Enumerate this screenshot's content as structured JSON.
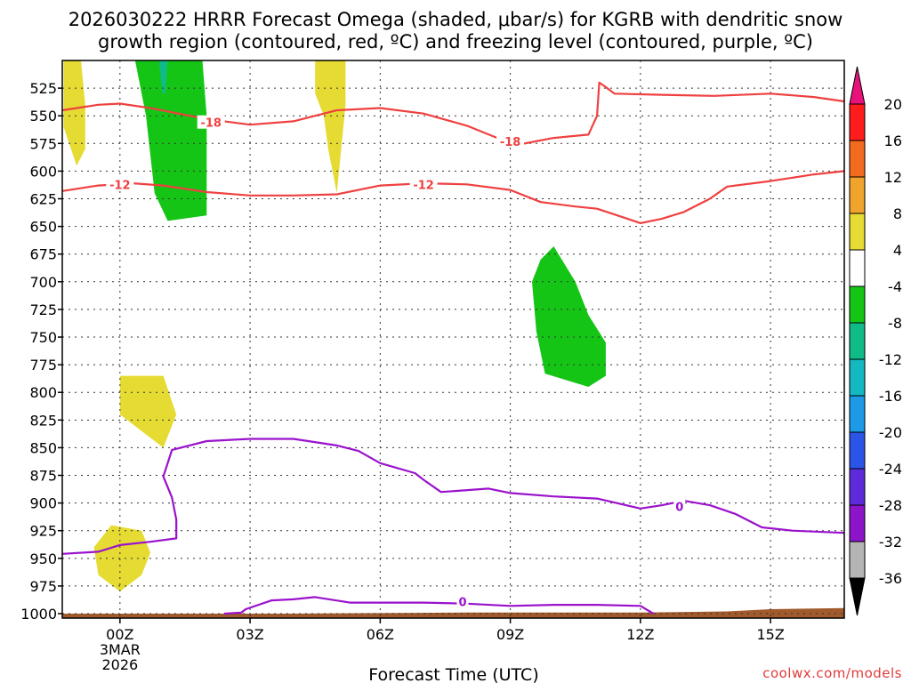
{
  "chart_data": {
    "type": "contour",
    "title_line1": "2026030222 HRRR Forecast Omega (shaded, μbar/s) for KGRB with dendritic snow",
    "title_line2": "growth region (contoured, red, ºC) and freezing level (contoured, purple, ºC)",
    "xlabel": "Forecast Time (UTC)",
    "credit": "coolwx.com/models",
    "xlim": [
      -1.33,
      16.7
    ],
    "ylim": [
      1004,
      500
    ],
    "x_ticks": [
      {
        "x": 0,
        "label": "00Z",
        "sub1": "3MAR",
        "sub2": "2026"
      },
      {
        "x": 3,
        "label": "03Z"
      },
      {
        "x": 6,
        "label": "06Z"
      },
      {
        "x": 9,
        "label": "09Z"
      },
      {
        "x": 12,
        "label": "12Z"
      },
      {
        "x": 15,
        "label": "15Z"
      }
    ],
    "y_ticks": [
      525,
      550,
      575,
      600,
      625,
      650,
      675,
      700,
      725,
      750,
      775,
      800,
      825,
      850,
      875,
      900,
      925,
      950,
      975,
      1000
    ],
    "colorbar": {
      "levels": [
        "20",
        "16",
        "12",
        "8",
        "4",
        "-4",
        "-8",
        "-12",
        "-16",
        "-20",
        "-24",
        "-28",
        "-32",
        "-36"
      ],
      "colors": [
        "#ff1c1c",
        "#f26b1f",
        "#f0a32d",
        "#e5db32",
        "#ffffff",
        "#15c515",
        "#0fbc88",
        "#13b8c0",
        "#1c9ae6",
        "#2b55e6",
        "#5d2bd9",
        "#8d14c8",
        "#b4b4b4"
      ],
      "top_color": "#e8127a",
      "bottom_color": "#000000"
    },
    "contours": {
      "dgz_top": {
        "label": "-18",
        "color": "#ef4040",
        "label_at": [
          [
            2.1,
            556
          ],
          [
            9.0,
            573
          ]
        ],
        "points": [
          [
            -1.33,
            545
          ],
          [
            -0.5,
            540
          ],
          [
            0,
            539
          ],
          [
            0.7,
            543
          ],
          [
            2,
            553
          ],
          [
            3,
            558
          ],
          [
            4,
            555
          ],
          [
            5,
            545
          ],
          [
            6,
            543
          ],
          [
            7,
            548
          ],
          [
            8,
            559
          ],
          [
            8.7,
            570
          ],
          [
            9.2,
            576
          ],
          [
            10,
            570
          ],
          [
            10.8,
            567
          ],
          [
            11.0,
            550
          ],
          [
            11.05,
            520
          ],
          [
            11.2,
            524
          ],
          [
            11.4,
            530
          ],
          [
            12.5,
            531
          ],
          [
            13.7,
            532
          ],
          [
            15,
            530
          ],
          [
            16,
            533
          ],
          [
            16.7,
            537
          ]
        ]
      },
      "dgz_bottom": {
        "label": "-12",
        "color": "#ef4040",
        "label_at": [
          [
            0.0,
            612
          ],
          [
            7.0,
            612
          ]
        ],
        "points": [
          [
            -1.33,
            618
          ],
          [
            -0.5,
            613
          ],
          [
            0.3,
            611
          ],
          [
            1,
            613
          ],
          [
            2,
            619
          ],
          [
            3,
            622
          ],
          [
            4,
            622
          ],
          [
            5,
            621
          ],
          [
            6,
            613
          ],
          [
            7,
            611
          ],
          [
            8,
            612
          ],
          [
            9,
            617
          ],
          [
            9.7,
            628
          ],
          [
            10.5,
            632
          ],
          [
            11,
            634
          ],
          [
            11.7,
            643
          ],
          [
            12,
            647
          ],
          [
            12.5,
            643
          ],
          [
            13.0,
            637
          ],
          [
            13.6,
            625
          ],
          [
            14,
            614
          ],
          [
            15,
            609
          ],
          [
            16,
            603
          ],
          [
            16.7,
            600
          ]
        ]
      },
      "freezing_upper": {
        "label": "0",
        "color": "#9a12cc",
        "label_at": [
          [
            12.9,
            903
          ]
        ],
        "points": [
          [
            -1.33,
            946
          ],
          [
            -0.5,
            944
          ],
          [
            0,
            938
          ],
          [
            0.7,
            935
          ],
          [
            1.3,
            932
          ],
          [
            1.3,
            915
          ],
          [
            1.2,
            895
          ],
          [
            1.0,
            876
          ],
          [
            1.2,
            852
          ],
          [
            2,
            844
          ],
          [
            3,
            842
          ],
          [
            4,
            842
          ],
          [
            5,
            848
          ],
          [
            5.5,
            853
          ],
          [
            6,
            864
          ],
          [
            6.8,
            873
          ],
          [
            7,
            879
          ],
          [
            7.4,
            890
          ],
          [
            7.8,
            889
          ],
          [
            8.5,
            887
          ],
          [
            9,
            891
          ],
          [
            10,
            894
          ],
          [
            11,
            896
          ],
          [
            12,
            905
          ],
          [
            12.5,
            902
          ],
          [
            13,
            898
          ],
          [
            13.6,
            902
          ],
          [
            14.2,
            910
          ],
          [
            14.8,
            922
          ],
          [
            15.5,
            925
          ],
          [
            16.7,
            927
          ]
        ]
      },
      "freezing_lower": {
        "label": "0",
        "color": "#9a12cc",
        "label_at": [
          [
            7.9,
            989
          ]
        ],
        "points": [
          [
            2.4,
            1000
          ],
          [
            2.8,
            999
          ],
          [
            2.9,
            996
          ],
          [
            3.5,
            988
          ],
          [
            4,
            987
          ],
          [
            4.5,
            985
          ],
          [
            5.3,
            990
          ],
          [
            6,
            990
          ],
          [
            7,
            990
          ],
          [
            8,
            991
          ],
          [
            9,
            993
          ],
          [
            10,
            992
          ],
          [
            11,
            992
          ],
          [
            12,
            993
          ],
          [
            12.3,
            1000
          ]
        ]
      }
    },
    "shaded_regions": [
      {
        "omega": 4,
        "color": "#e5db32",
        "points": [
          [
            -1.3,
            500
          ],
          [
            -0.9,
            500
          ],
          [
            -0.8,
            540
          ],
          [
            -0.8,
            580
          ],
          [
            -1.0,
            595
          ],
          [
            -1.3,
            560
          ],
          [
            -1.3,
            500
          ]
        ]
      },
      {
        "omega": 4,
        "color": "#e5db32",
        "points": [
          [
            4.5,
            500
          ],
          [
            5.2,
            500
          ],
          [
            5.2,
            540
          ],
          [
            5.1,
            580
          ],
          [
            5.0,
            620
          ],
          [
            4.8,
            580
          ],
          [
            4.7,
            550
          ],
          [
            4.5,
            530
          ],
          [
            4.5,
            500
          ]
        ]
      },
      {
        "omega": 4,
        "color": "#e5db32",
        "points": [
          [
            0,
            785
          ],
          [
            1.0,
            785
          ],
          [
            1.3,
            820
          ],
          [
            1.0,
            850
          ],
          [
            0.6,
            838
          ],
          [
            0,
            820
          ],
          [
            0,
            785
          ]
        ]
      },
      {
        "omega": 4,
        "color": "#e5db32",
        "points": [
          [
            -0.6,
            940
          ],
          [
            -0.2,
            920
          ],
          [
            0.5,
            925
          ],
          [
            0.7,
            945
          ],
          [
            0.5,
            965
          ],
          [
            0,
            980
          ],
          [
            -0.5,
            965
          ],
          [
            -0.6,
            940
          ]
        ]
      },
      {
        "omega": -4,
        "color": "#15c515",
        "points": [
          [
            0.35,
            500
          ],
          [
            1.9,
            500
          ],
          [
            2.0,
            550
          ],
          [
            2.0,
            640
          ],
          [
            1.1,
            645
          ],
          [
            0.8,
            620
          ],
          [
            0.6,
            550
          ],
          [
            0.35,
            500
          ]
        ]
      },
      {
        "omega": -8,
        "color": "#0fbc88",
        "points": [
          [
            0.9,
            500
          ],
          [
            1.1,
            500
          ],
          [
            1.05,
            530
          ],
          [
            0.98,
            530
          ],
          [
            0.9,
            500
          ]
        ]
      },
      {
        "omega": -4,
        "color": "#15c515",
        "points": [
          [
            10.0,
            668
          ],
          [
            10.5,
            700
          ],
          [
            10.8,
            730
          ],
          [
            11.2,
            755
          ],
          [
            11.2,
            785
          ],
          [
            10.8,
            795
          ],
          [
            9.8,
            783
          ],
          [
            9.6,
            745
          ],
          [
            9.5,
            700
          ],
          [
            9.7,
            680
          ],
          [
            10.0,
            668
          ]
        ]
      }
    ],
    "terrain": {
      "color": "#a05a2c",
      "points": [
        [
          -1.33,
          1000
        ],
        [
          4,
          1000
        ],
        [
          8,
          999
        ],
        [
          12,
          999
        ],
        [
          14,
          998
        ],
        [
          15,
          996
        ],
        [
          16.7,
          995
        ],
        [
          16.7,
          1004
        ],
        [
          -1.33,
          1004
        ]
      ]
    }
  }
}
